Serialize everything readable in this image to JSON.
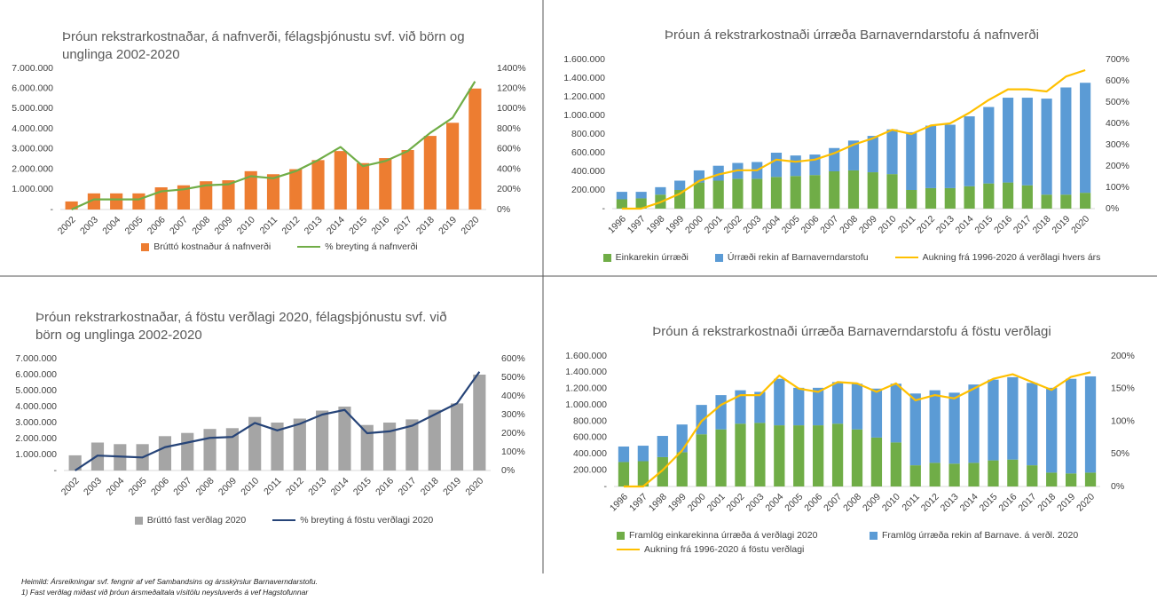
{
  "chart_data": [
    {
      "type": "bar",
      "title": "Þróun rekstrarkostnaðar, á nafnverði, félagsþjónustu svf. við börn og unglinga 2002-2020",
      "categories": [
        "2002",
        "2003",
        "2004",
        "2005",
        "2006",
        "2007",
        "2008",
        "2009",
        "2010",
        "2011",
        "2012",
        "2013",
        "2014",
        "2015",
        "2016",
        "2017",
        "2018",
        "2019",
        "2020"
      ],
      "series": [
        {
          "name": "Brúttó kostnaður á nafnverði",
          "type": "bar",
          "color": "#ED7D31",
          "values": [
            400000,
            800000,
            800000,
            800000,
            1100000,
            1200000,
            1400000,
            1450000,
            1900000,
            1750000,
            2000000,
            2450000,
            2900000,
            2300000,
            2550000,
            2950000,
            3650000,
            4300000,
            6000000
          ]
        },
        {
          "name": "% breyting á nafnverði",
          "type": "line",
          "axis": "y2",
          "color": "#70AD47",
          "values": [
            0,
            100,
            100,
            100,
            180,
            200,
            240,
            250,
            330,
            310,
            380,
            490,
            620,
            430,
            480,
            580,
            760,
            910,
            1270
          ]
        }
      ],
      "ylim": [
        0,
        7000000
      ],
      "yticks": [
        {
          "value": 0,
          "label": "-"
        },
        {
          "value": 1000000,
          "label": "1.000.000"
        },
        {
          "value": 2000000,
          "label": "2.000.000"
        },
        {
          "value": 3000000,
          "label": "3.000.000"
        },
        {
          "value": 4000000,
          "label": "4.000.000"
        },
        {
          "value": 5000000,
          "label": "5.000.000"
        },
        {
          "value": 6000000,
          "label": "6.000.000"
        },
        {
          "value": 7000000,
          "label": "7.000.000"
        }
      ],
      "y2lim": [
        0,
        1400
      ],
      "y2ticks": [
        {
          "value": 0,
          "label": "0%"
        },
        {
          "value": 200,
          "label": "200%"
        },
        {
          "value": 400,
          "label": "400%"
        },
        {
          "value": 600,
          "label": "600%"
        },
        {
          "value": 800,
          "label": "800%"
        },
        {
          "value": 1000,
          "label": "1000%"
        },
        {
          "value": 1200,
          "label": "1200%"
        },
        {
          "value": 1400,
          "label": "1400%"
        }
      ],
      "grid": false,
      "legend": "bottom"
    },
    {
      "type": "stacked_bar",
      "title": "Þróun á rekstrarkostnaði úrræða Barnaverndarstofu á nafnverði",
      "categories": [
        "1996",
        "1997",
        "1998",
        "1999",
        "2000",
        "2001",
        "2002",
        "2003",
        "2004",
        "2005",
        "2006",
        "2007",
        "2008",
        "2009",
        "2010",
        "2011",
        "2012",
        "2013",
        "2014",
        "2015",
        "2016",
        "2017",
        "2018",
        "2019",
        "2020"
      ],
      "series": [
        {
          "name": "Einkarekin úrræði",
          "type": "bar",
          "color": "#70AD47",
          "values": [
            100000,
            110000,
            150000,
            200000,
            280000,
            300000,
            320000,
            320000,
            340000,
            350000,
            360000,
            400000,
            410000,
            390000,
            370000,
            200000,
            220000,
            220000,
            240000,
            270000,
            280000,
            250000,
            150000,
            150000,
            170000
          ]
        },
        {
          "name": "Úrræði rekin af Barnaverndarstofu",
          "type": "bar",
          "color": "#5B9BD5",
          "values": [
            80000,
            70000,
            80000,
            100000,
            130000,
            160000,
            170000,
            180000,
            260000,
            220000,
            220000,
            250000,
            320000,
            390000,
            480000,
            620000,
            670000,
            680000,
            750000,
            820000,
            910000,
            940000,
            1030000,
            1150000,
            1180000
          ]
        },
        {
          "name": "Aukning frá 1996-2020 á verðlagi hvers árs",
          "type": "line",
          "axis": "y2",
          "color": "#FFC000",
          "values": [
            0,
            0,
            30,
            70,
            130,
            160,
            180,
            180,
            230,
            220,
            230,
            260,
            300,
            330,
            370,
            350,
            390,
            400,
            450,
            510,
            560,
            560,
            550,
            620,
            650
          ]
        }
      ],
      "ylim": [
        0,
        1600000
      ],
      "yticks": [
        {
          "value": 0,
          "label": "-"
        },
        {
          "value": 200000,
          "label": "200.000"
        },
        {
          "value": 400000,
          "label": "400.000"
        },
        {
          "value": 600000,
          "label": "600.000"
        },
        {
          "value": 800000,
          "label": "800.000"
        },
        {
          "value": 1000000,
          "label": "1.000.000"
        },
        {
          "value": 1200000,
          "label": "1.200.000"
        },
        {
          "value": 1400000,
          "label": "1.400.000"
        },
        {
          "value": 1600000,
          "label": "1.600.000"
        }
      ],
      "y2lim": [
        0,
        700
      ],
      "y2ticks": [
        {
          "value": 0,
          "label": "0%"
        },
        {
          "value": 100,
          "label": "100%"
        },
        {
          "value": 200,
          "label": "200%"
        },
        {
          "value": 300,
          "label": "300%"
        },
        {
          "value": 400,
          "label": "400%"
        },
        {
          "value": 500,
          "label": "500%"
        },
        {
          "value": 600,
          "label": "600%"
        },
        {
          "value": 700,
          "label": "700%"
        }
      ],
      "grid": false,
      "legend": "bottom"
    },
    {
      "type": "bar",
      "title": "Þróun rekstrarkostnaðar, á föstu verðlagi 2020, félagsþjónustu svf. við börn og unglinga 2002-2020",
      "categories": [
        "2002",
        "2003",
        "2004",
        "2005",
        "2006",
        "2007",
        "2008",
        "2009",
        "2010",
        "2011",
        "2012",
        "2013",
        "2014",
        "2015",
        "2016",
        "2017",
        "2018",
        "2019",
        "2020"
      ],
      "series": [
        {
          "name": "Brúttó fast verðlag 2020",
          "type": "bar",
          "color": "#A5A5A5",
          "values": [
            950000,
            1750000,
            1650000,
            1650000,
            2150000,
            2350000,
            2600000,
            2650000,
            3350000,
            3000000,
            3250000,
            3750000,
            4000000,
            2850000,
            3000000,
            3200000,
            3800000,
            4200000,
            6000000
          ]
        },
        {
          "name": "% breyting á föstu verðlagi 2020",
          "type": "line",
          "axis": "y2",
          "color": "#264478",
          "values": [
            0,
            80,
            75,
            70,
            125,
            150,
            175,
            180,
            255,
            215,
            250,
            300,
            325,
            200,
            210,
            240,
            300,
            360,
            530
          ]
        }
      ],
      "ylim": [
        0,
        7000000
      ],
      "yticks": [
        {
          "value": 0,
          "label": "-"
        },
        {
          "value": 1000000,
          "label": "1.000.000"
        },
        {
          "value": 2000000,
          "label": "2.000.000"
        },
        {
          "value": 3000000,
          "label": "3.000.000"
        },
        {
          "value": 4000000,
          "label": "4.000.000"
        },
        {
          "value": 5000000,
          "label": "5.000.000"
        },
        {
          "value": 6000000,
          "label": "6.000.000"
        },
        {
          "value": 7000000,
          "label": "7.000.000"
        }
      ],
      "y2lim": [
        0,
        600
      ],
      "y2ticks": [
        {
          "value": 0,
          "label": "0%"
        },
        {
          "value": 100,
          "label": "100%"
        },
        {
          "value": 200,
          "label": "200%"
        },
        {
          "value": 300,
          "label": "300%"
        },
        {
          "value": 400,
          "label": "400%"
        },
        {
          "value": 500,
          "label": "500%"
        },
        {
          "value": 600,
          "label": "600%"
        }
      ],
      "grid": false,
      "legend": "bottom"
    },
    {
      "type": "stacked_bar",
      "title": "Þróun á rekstrarkostnaði úrræða Barnaverndarstofu á föstu verðlagi",
      "categories": [
        "1996",
        "1997",
        "1998",
        "1999",
        "2000",
        "2001",
        "2002",
        "2003",
        "2004",
        "2005",
        "2006",
        "2007",
        "2008",
        "2009",
        "2010",
        "2011",
        "2012",
        "2013",
        "2014",
        "2015",
        "2016",
        "2017",
        "2018",
        "2019",
        "2020"
      ],
      "series": [
        {
          "name": "Framlög einkarekinna úrræða á verðlagi 2020",
          "type": "bar",
          "color": "#70AD47",
          "values": [
            300000,
            310000,
            360000,
            420000,
            640000,
            700000,
            770000,
            780000,
            750000,
            750000,
            750000,
            770000,
            700000,
            600000,
            540000,
            260000,
            290000,
            280000,
            290000,
            320000,
            330000,
            260000,
            170000,
            160000,
            170000
          ]
        },
        {
          "name": "Framlög úrræða rekin af Barnave. á verðl. 2020",
          "type": "bar",
          "color": "#5B9BD5",
          "values": [
            190000,
            190000,
            260000,
            340000,
            360000,
            420000,
            410000,
            380000,
            570000,
            460000,
            460000,
            510000,
            560000,
            600000,
            720000,
            880000,
            890000,
            870000,
            960000,
            990000,
            1010000,
            1010000,
            1040000,
            1160000,
            1180000
          ]
        },
        {
          "name": "Aukning frá 1996-2020 á föstu verðlagi",
          "type": "line",
          "axis": "y2",
          "color": "#FFC000",
          "values": [
            0,
            0,
            25,
            55,
            100,
            125,
            140,
            140,
            170,
            150,
            145,
            160,
            158,
            145,
            158,
            132,
            140,
            135,
            150,
            165,
            172,
            160,
            148,
            168,
            175
          ]
        }
      ],
      "ylim": [
        0,
        1600000
      ],
      "yticks": [
        {
          "value": 0,
          "label": "-"
        },
        {
          "value": 200000,
          "label": "200.000"
        },
        {
          "value": 400000,
          "label": "400.000"
        },
        {
          "value": 600000,
          "label": "600.000"
        },
        {
          "value": 800000,
          "label": "800.000"
        },
        {
          "value": 1000000,
          "label": "1.000.000"
        },
        {
          "value": 1200000,
          "label": "1.200.000"
        },
        {
          "value": 1400000,
          "label": "1.400.000"
        },
        {
          "value": 1600000,
          "label": "1.600.000"
        }
      ],
      "y2lim": [
        0,
        200
      ],
      "y2ticks": [
        {
          "value": 0,
          "label": "0%"
        },
        {
          "value": 50,
          "label": "50%"
        },
        {
          "value": 100,
          "label": "100%"
        },
        {
          "value": 150,
          "label": "150%"
        },
        {
          "value": 200,
          "label": "200%"
        }
      ],
      "grid": false,
      "legend": "bottom"
    }
  ],
  "notes": [
    "Heimild: Ársreikningar svf. fengnir af vef Sambandsins og ársskýrslur Barnaverndarstofu.",
    "1) Fast verðlag miðast við þróun ársmeðaltala vísitölu neysluverðs á vef Hagstofunnar"
  ]
}
